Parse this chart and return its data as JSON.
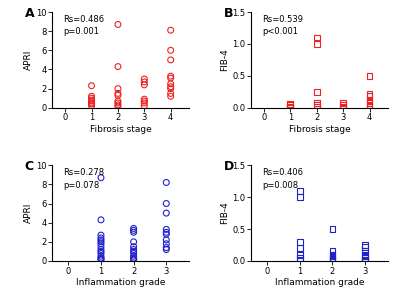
{
  "panel_A": {
    "label": "A",
    "x": [
      1,
      1,
      1,
      1,
      1,
      1,
      1,
      1,
      2,
      2,
      2,
      2,
      2,
      2,
      2,
      2,
      2,
      3,
      3,
      3,
      3,
      3,
      3,
      3,
      4,
      4,
      4,
      4,
      4,
      4,
      4,
      4,
      4,
      4
    ],
    "y": [
      2.3,
      1.2,
      1.0,
      0.8,
      0.7,
      0.5,
      0.4,
      0.2,
      8.7,
      4.3,
      2.0,
      1.5,
      1.3,
      0.7,
      0.5,
      0.3,
      0.1,
      3.0,
      2.7,
      2.4,
      0.9,
      0.7,
      0.5,
      0.2,
      8.1,
      6.0,
      5.0,
      3.3,
      3.1,
      2.5,
      2.2,
      2.0,
      1.5,
      1.2
    ],
    "color": "#EE2222",
    "marker": "o",
    "xlabel": "Fibrosis stage",
    "ylabel": "APRI",
    "xlim": [
      -0.5,
      4.7
    ],
    "ylim": [
      0,
      10
    ],
    "yticks": [
      0,
      2,
      4,
      6,
      8,
      10
    ],
    "xticks": [
      0,
      1,
      2,
      3,
      4
    ],
    "stats": "Rs=0.486\np=0.001"
  },
  "panel_B": {
    "label": "B",
    "x": [
      1,
      1,
      1,
      1,
      1,
      2,
      2,
      2,
      2,
      2,
      2,
      3,
      3,
      3,
      3,
      4,
      4,
      4,
      4,
      4,
      4,
      4,
      4,
      4
    ],
    "y": [
      0.06,
      0.04,
      0.02,
      0.01,
      0.005,
      1.1,
      1.0,
      0.24,
      0.07,
      0.04,
      0.01,
      0.07,
      0.05,
      0.02,
      0.005,
      0.5,
      0.22,
      0.18,
      0.13,
      0.1,
      0.07,
      0.05,
      0.03,
      0.01
    ],
    "color": "#EE2222",
    "marker": "s",
    "xlabel": "Fibrosis stage",
    "ylabel": "FIB-4",
    "xlim": [
      -0.5,
      4.7
    ],
    "ylim": [
      0,
      1.5
    ],
    "yticks": [
      0.0,
      0.5,
      1.0,
      1.5
    ],
    "xticks": [
      0,
      1,
      2,
      3,
      4
    ],
    "stats": "Rs=0.539\np<0.001"
  },
  "panel_C": {
    "label": "C",
    "x": [
      1,
      1,
      1,
      1,
      1,
      1,
      1,
      1,
      1,
      1,
      1,
      1,
      1,
      1,
      1,
      2,
      2,
      2,
      2,
      2,
      2,
      2,
      2,
      2,
      2,
      2,
      2,
      3,
      3,
      3,
      3,
      3,
      3,
      3,
      3,
      3,
      3
    ],
    "y": [
      8.7,
      4.3,
      2.7,
      2.4,
      2.2,
      2.0,
      1.8,
      1.5,
      1.2,
      1.0,
      0.8,
      0.5,
      0.3,
      0.2,
      0.1,
      3.4,
      3.2,
      3.0,
      2.0,
      1.5,
      1.2,
      1.0,
      0.8,
      0.5,
      0.3,
      0.2,
      0.1,
      8.2,
      6.0,
      5.0,
      3.3,
      3.0,
      2.8,
      2.2,
      1.8,
      1.4,
      1.2
    ],
    "color": "#2222CC",
    "marker": "o",
    "xlabel": "Inflammation grade",
    "ylabel": "APRI",
    "xlim": [
      -0.5,
      3.7
    ],
    "ylim": [
      0,
      10
    ],
    "yticks": [
      0,
      2,
      4,
      6,
      8,
      10
    ],
    "xticks": [
      0,
      1,
      2,
      3
    ],
    "stats": "Rs=0.278\np=0.078"
  },
  "panel_D": {
    "label": "D",
    "x": [
      1,
      1,
      1,
      1,
      1,
      1,
      1,
      2,
      2,
      2,
      2,
      2,
      2,
      2,
      2,
      3,
      3,
      3,
      3,
      3,
      3,
      3,
      3
    ],
    "y": [
      1.1,
      1.0,
      0.3,
      0.2,
      0.1,
      0.05,
      0.02,
      0.5,
      0.15,
      0.1,
      0.08,
      0.05,
      0.03,
      0.02,
      0.005,
      0.25,
      0.22,
      0.15,
      0.1,
      0.08,
      0.05,
      0.02,
      0.01
    ],
    "color": "#2222CC",
    "marker": "s",
    "xlabel": "Inflammation grade",
    "ylabel": "FIB-4",
    "xlim": [
      -0.5,
      3.7
    ],
    "ylim": [
      0,
      1.5
    ],
    "yticks": [
      0.0,
      0.5,
      1.0,
      1.5
    ],
    "xticks": [
      0,
      1,
      2,
      3
    ],
    "stats": "Rs=0.406\np=0.008"
  },
  "background_color": "#FFFFFF",
  "marker_size": 18,
  "marker_linewidth": 0.8
}
